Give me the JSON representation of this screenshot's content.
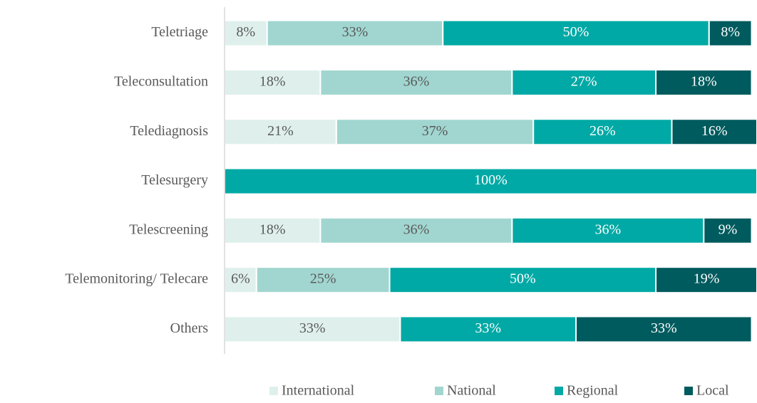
{
  "chart_data": {
    "type": "stacked-bar-horizontal",
    "categories": [
      "Teletriage",
      "Teleconsultation",
      "Telediagnosis",
      "Telesurgery",
      "Telescreening",
      "Telemonitoring/ Telecare",
      "Others"
    ],
    "xlim": [
      0,
      100
    ],
    "series": [
      {
        "name": "International",
        "color": "#dff0ec",
        "values": [
          8,
          18,
          21,
          0,
          18,
          6,
          33
        ],
        "value_labels": [
          "8%",
          "18%",
          "21%",
          null,
          "18%",
          "6%",
          "33%"
        ]
      },
      {
        "name": "National",
        "color": "#a1d6d0",
        "values": [
          33,
          36,
          37,
          0,
          36,
          25,
          0
        ],
        "value_labels": [
          "33%",
          "36%",
          "37%",
          null,
          "36%",
          "25%",
          null
        ]
      },
      {
        "name": "Regional",
        "color": "#00a9a5",
        "values": [
          50,
          27,
          26,
          100,
          36,
          50,
          33
        ],
        "value_labels": [
          "50%",
          "27%",
          "26%",
          "100%",
          "36%",
          "50%",
          "33%"
        ]
      },
      {
        "name": "Local",
        "color": "#005b5e",
        "values": [
          8,
          18,
          16,
          0,
          9,
          19,
          33
        ],
        "value_labels": [
          "8%",
          "18%",
          "16%",
          null,
          "9%",
          "19%",
          "33%"
        ]
      }
    ]
  }
}
